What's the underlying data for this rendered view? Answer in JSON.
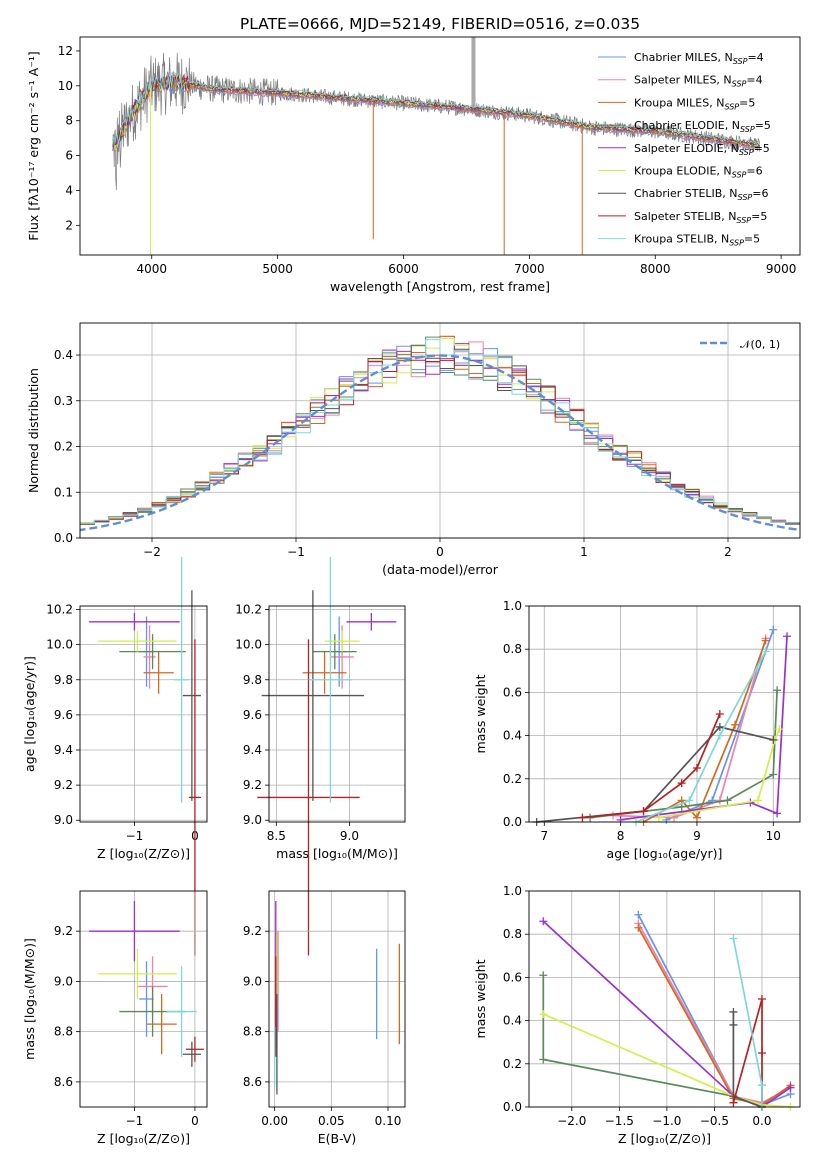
{
  "colors": {
    "Chabrier MILES": "#6495ed",
    "Salpeter MILES": "#ee82aa",
    "Kroupa MILES": "#d2691e",
    "Chabrier ELODIE": "#5a8a5a",
    "Salpeter ELODIE": "#9932cc",
    "Kroupa ELODIE": "#d4ee4a",
    "Chabrier STELIB": "#555555",
    "Salpeter STELIB": "#b22222",
    "Kroupa STELIB": "#7fd8d8"
  },
  "chart_data": [
    {
      "type": "line",
      "title": "PLATE=0666, MJD=52149, FIBERID=0516, z=0.035",
      "xlabel": "wavelength [Angstrom, rest frame]",
      "ylabel": "Flux [fλ10⁻¹⁷ erg cm⁻² s⁻¹ A⁻¹]",
      "xlim": [
        3430,
        9150
      ],
      "ylim": [
        0.3,
        12.8
      ],
      "xticks": [
        "4000",
        "5000",
        "6000",
        "7000",
        "8000",
        "9000"
      ],
      "yticks": [
        "2",
        "4",
        "6",
        "8",
        "10",
        "12"
      ],
      "grid": false,
      "legend": "top-right",
      "spectrum_x": [
        3700,
        3850,
        4000,
        4200,
        4500,
        5000,
        5500,
        6000,
        6500,
        7000,
        7500,
        8000,
        8500,
        8800
      ],
      "spectrum_y": [
        6.5,
        8.5,
        10.0,
        10.2,
        9.8,
        9.6,
        9.3,
        9.0,
        8.7,
        8.3,
        7.6,
        7.4,
        6.9,
        6.6
      ],
      "series": [
        {
          "name": "Chabrier MILES, N_SSP=4",
          "label_main": "Chabrier MILES, N",
          "label_sub": "SSP",
          "label_end": "=4"
        },
        {
          "name": "Salpeter MILES, N_SSP=4",
          "label_main": "Salpeter MILES, N",
          "label_sub": "SSP",
          "label_end": "=4"
        },
        {
          "name": "Kroupa MILES, N_SSP=5",
          "label_main": "Kroupa MILES, N",
          "label_sub": "SSP",
          "label_end": "=5"
        },
        {
          "name": "Chabrier ELODIE, N_SSP=5",
          "label_main": "Chabrier ELODIE, N",
          "label_sub": "SSP",
          "label_end": "=5"
        },
        {
          "name": "Salpeter ELODIE, N_SSP=5",
          "label_main": "Salpeter ELODIE, N",
          "label_sub": "SSP",
          "label_end": "=5"
        },
        {
          "name": "Kroupa ELODIE, N_SSP=6",
          "label_main": "Kroupa ELODIE, N",
          "label_sub": "SSP",
          "label_end": "=6"
        },
        {
          "name": "Chabrier STELIB, N_SSP=6",
          "label_main": "Chabrier STELIB, N",
          "label_sub": "SSP",
          "label_end": "=6"
        },
        {
          "name": "Salpeter STELIB, N_SSP=5",
          "label_main": "Salpeter STELIB, N",
          "label_sub": "SSP",
          "label_end": "=5"
        },
        {
          "name": "Kroupa STELIB, N_SSP=5",
          "label_main": "Kroupa STELIB, N",
          "label_sub": "SSP",
          "label_end": "=5"
        }
      ]
    },
    {
      "type": "line",
      "xlabel": "(data-model)/error",
      "ylabel": "Normed distribution",
      "xlim": [
        -2.5,
        2.5
      ],
      "ylim": [
        0,
        0.47
      ],
      "xticks": [
        "−2",
        "−1",
        "0",
        "1",
        "2"
      ],
      "yticks": [
        "0.0",
        "0.1",
        "0.2",
        "0.3",
        "0.4"
      ],
      "grid": true,
      "legend": "top-right",
      "legend_label": "𝒩(0, 1)",
      "gaussian": {
        "mean": 0,
        "sigma": 1,
        "color": "#5b8fd6"
      },
      "bin_width": 0.1
    },
    {
      "type": "scatter",
      "xlabel": "Z [log₁₀(Z/Z⊙)]",
      "ylabel": "age  [log₁₀(age/yr)]",
      "xlim": [
        -1.9,
        0.2
      ],
      "ylim": [
        8.99,
        10.22
      ],
      "xticks": [
        "−1",
        "0"
      ],
      "yticks": [
        "9.0",
        "9.2",
        "9.4",
        "9.6",
        "9.8",
        "10.0",
        "10.2"
      ],
      "grid": true,
      "points": [
        {
          "c": "Chabrier MILES",
          "x": -0.8,
          "y": 9.96,
          "xerr": 0.12,
          "yerr": 0.2
        },
        {
          "c": "Salpeter MILES",
          "x": -0.75,
          "y": 9.93,
          "xerr": 0.1,
          "yerr": 0.18
        },
        {
          "c": "Kroupa MILES",
          "x": -0.6,
          "y": 9.84,
          "xerr": 0.25,
          "yerr": 0.12
        },
        {
          "c": "Chabrier ELODIE",
          "x": -0.7,
          "y": 9.96,
          "xerr": 0.55,
          "yerr": 0.1
        },
        {
          "c": "Salpeter ELODIE",
          "x": -1.0,
          "y": 10.13,
          "xerr": 0.75,
          "yerr": 0.05
        },
        {
          "c": "Kroupa ELODIE",
          "x": -0.95,
          "y": 10.02,
          "xerr": 0.65,
          "yerr": 0.06
        },
        {
          "c": "Chabrier STELIB",
          "x": -0.05,
          "y": 9.71,
          "xerr": 0.15,
          "yerr": 0.6
        },
        {
          "c": "Salpeter STELIB",
          "x": 0.0,
          "y": 9.13,
          "xerr": 0.1,
          "yerr": 0.9
        },
        {
          "c": "Kroupa STELIB",
          "x": -0.22,
          "y": 9.8,
          "xerr": 0.12,
          "yerr": 0.7
        }
      ]
    },
    {
      "type": "scatter",
      "xlabel": "mass [log₁₀(M/M⊙)]",
      "xlim": [
        8.45,
        9.38
      ],
      "ylim": [
        8.99,
        10.22
      ],
      "xticks": [
        "8.5",
        "9.0"
      ],
      "yticks": [
        "9.0",
        "9.2",
        "9.4",
        "9.6",
        "9.8",
        "10.0",
        "10.2"
      ],
      "grid": true,
      "points": [
        {
          "c": "Chabrier MILES",
          "x": 8.93,
          "y": 9.96,
          "xerr": 0.05,
          "yerr": 0.2
        },
        {
          "c": "Salpeter MILES",
          "x": 8.95,
          "y": 9.93,
          "xerr": 0.08,
          "yerr": 0.18
        },
        {
          "c": "Kroupa MILES",
          "x": 8.83,
          "y": 9.84,
          "xerr": 0.15,
          "yerr": 0.12
        },
        {
          "c": "Chabrier ELODIE",
          "x": 8.9,
          "y": 9.96,
          "xerr": 0.15,
          "yerr": 0.1
        },
        {
          "c": "Salpeter ELODIE",
          "x": 9.15,
          "y": 10.13,
          "xerr": 0.17,
          "yerr": 0.05
        },
        {
          "c": "Kroupa ELODIE",
          "x": 8.95,
          "y": 10.02,
          "xerr": 0.12,
          "yerr": 0.06
        },
        {
          "c": "Chabrier STELIB",
          "x": 8.75,
          "y": 9.71,
          "xerr": 0.35,
          "yerr": 0.6
        },
        {
          "c": "Salpeter STELIB",
          "x": 8.72,
          "y": 9.13,
          "xerr": 0.35,
          "yerr": 0.9
        },
        {
          "c": "Kroupa STELIB",
          "x": 8.87,
          "y": 9.8,
          "xerr": 0.15,
          "yerr": 0.7
        }
      ]
    },
    {
      "type": "line",
      "xlabel": "age  [log₁₀(age/yr)]",
      "ylabel": "mass weight",
      "xlim": [
        6.8,
        10.35
      ],
      "ylim": [
        0,
        1.0
      ],
      "xticks": [
        "7",
        "8",
        "9",
        "10"
      ],
      "yticks": [
        "0.0",
        "0.2",
        "0.4",
        "0.6",
        "0.8",
        "1.0"
      ],
      "grid": true,
      "series": [
        {
          "c": "Chabrier MILES",
          "x": [
            8.6,
            9.2,
            10.0
          ],
          "y": [
            0.01,
            0.1,
            0.89
          ]
        },
        {
          "c": "Salpeter MILES",
          "x": [
            7.9,
            8.7,
            9.3,
            9.9
          ],
          "y": [
            0.03,
            0.02,
            0.1,
            0.85
          ]
        },
        {
          "c": "Kroupa MILES",
          "x": [
            8.3,
            8.8,
            9.0,
            9.5,
            9.9
          ],
          "y": [
            0.0,
            0.1,
            0.02,
            0.45,
            0.84
          ]
        },
        {
          "c": "Chabrier ELODIE",
          "x": [
            7.6,
            8.8,
            9.4,
            10.0,
            10.05
          ],
          "y": [
            0.02,
            0.07,
            0.1,
            0.22,
            0.61
          ]
        },
        {
          "c": "Salpeter ELODIE",
          "x": [
            8.0,
            9.7,
            10.05,
            10.18
          ],
          "y": [
            0.01,
            0.09,
            0.04,
            0.86
          ]
        },
        {
          "c": "Kroupa ELODIE",
          "x": [
            8.5,
            9.8,
            10.02,
            10.08
          ],
          "y": [
            0.02,
            0.1,
            0.38,
            0.43
          ]
        },
        {
          "c": "Chabrier STELIB",
          "x": [
            6.9,
            8.3,
            9.3,
            10.0
          ],
          "y": [
            0.0,
            0.05,
            0.44,
            0.38
          ]
        },
        {
          "c": "Salpeter STELIB",
          "x": [
            7.5,
            8.3,
            8.8,
            9.0,
            9.3
          ],
          "y": [
            0.02,
            0.05,
            0.18,
            0.25,
            0.5
          ]
        },
        {
          "c": "Kroupa STELIB",
          "x": [
            8.2,
            8.9,
            9.3,
            9.9
          ],
          "y": [
            0.0,
            0.1,
            0.4,
            0.79
          ]
        }
      ]
    },
    {
      "type": "scatter",
      "xlabel": "Z [log₁₀(Z/Z⊙)]",
      "ylabel": "mass [log₁₀(M/M⊙)]",
      "xlim": [
        -1.9,
        0.2
      ],
      "ylim": [
        8.5,
        9.36
      ],
      "xticks": [
        "−1",
        "0"
      ],
      "yticks": [
        "8.6",
        "8.8",
        "9.0",
        "9.2"
      ],
      "grid": true,
      "points": [
        {
          "c": "Chabrier MILES",
          "x": -0.8,
          "y": 8.93,
          "xerr": 0.12,
          "yerr": 0.15
        },
        {
          "c": "Salpeter MILES",
          "x": -0.7,
          "y": 8.98,
          "xerr": 0.25,
          "yerr": 0.12
        },
        {
          "c": "Kroupa MILES",
          "x": -0.55,
          "y": 8.83,
          "xerr": 0.25,
          "yerr": 0.12
        },
        {
          "c": "Chabrier ELODIE",
          "x": -0.7,
          "y": 8.88,
          "xerr": 0.55,
          "yerr": 0.1
        },
        {
          "c": "Salpeter ELODIE",
          "x": -1.0,
          "y": 9.2,
          "xerr": 0.75,
          "yerr": 0.12
        },
        {
          "c": "Kroupa ELODIE",
          "x": -0.95,
          "y": 9.03,
          "xerr": 0.65,
          "yerr": 0.1
        },
        {
          "c": "Chabrier STELIB",
          "x": -0.05,
          "y": 8.71,
          "xerr": 0.15,
          "yerr": 0.05
        },
        {
          "c": "Salpeter STELIB",
          "x": 0.0,
          "y": 8.73,
          "xerr": 0.15,
          "yerr": 0.05
        },
        {
          "c": "Kroupa STELIB",
          "x": -0.22,
          "y": 8.88,
          "xerr": 0.25,
          "yerr": 0.18
        }
      ]
    },
    {
      "type": "scatter",
      "xlabel": "E(B-V)",
      "xlim": [
        -0.005,
        0.115
      ],
      "ylim": [
        8.5,
        9.36
      ],
      "xticks": [
        "0.00",
        "0.05",
        "0.10"
      ],
      "yticks": [
        "8.6",
        "8.8",
        "9.0",
        "9.2"
      ],
      "grid": true,
      "points": [
        {
          "c": "Chabrier MILES",
          "x": 0.09,
          "y": 8.95,
          "xerr": 0,
          "yerr": 0.18
        },
        {
          "c": "Kroupa MILES",
          "x": 0.11,
          "y": 8.95,
          "xerr": 0,
          "yerr": 0.2
        },
        {
          "c": "Salpeter ELODIE",
          "x": 0.001,
          "y": 9.15,
          "xerr": 0,
          "yerr": 0.17
        },
        {
          "c": "Kroupa ELODIE",
          "x": 0.002,
          "y": 9.03,
          "xerr": 0,
          "yerr": 0.17
        },
        {
          "c": "Chabrier ELODIE",
          "x": 0.001,
          "y": 8.88,
          "xerr": 0,
          "yerr": 0.15
        },
        {
          "c": "Salpeter STELIB",
          "x": 0.001,
          "y": 8.9,
          "xerr": 0,
          "yerr": 0.2
        },
        {
          "c": "Chabrier STELIB",
          "x": 0.002,
          "y": 8.75,
          "xerr": 0,
          "yerr": 0.2
        },
        {
          "c": "Kroupa STELIB",
          "x": 0.0,
          "y": 8.7,
          "xerr": 0,
          "yerr": 0.12
        },
        {
          "c": "Salpeter MILES",
          "x": 0.003,
          "y": 9.0,
          "xerr": 0,
          "yerr": 0.2
        }
      ]
    },
    {
      "type": "line",
      "xlabel": "Z [log₁₀(Z/Z⊙)]",
      "ylabel": "mass weight",
      "xlim": [
        -2.45,
        0.4
      ],
      "ylim": [
        0,
        1.0
      ],
      "xticks": [
        "−2.0",
        "−1.5",
        "−1.0",
        "−0.5",
        "0.0"
      ],
      "yticks": [
        "0.0",
        "0.2",
        "0.4",
        "0.6",
        "0.8",
        "1.0"
      ],
      "grid": true,
      "series": [
        {
          "c": "Chabrier MILES",
          "x": [
            -1.3,
            -0.3,
            0.0,
            0.3
          ],
          "y": [
            0.89,
            0.05,
            0.01,
            0.06
          ]
        },
        {
          "c": "Salpeter MILES",
          "x": [
            -1.3,
            -0.3,
            0.0,
            0.3
          ],
          "y": [
            0.85,
            0.05,
            0.02,
            0.09
          ]
        },
        {
          "c": "Kroupa MILES",
          "x": [
            -1.3,
            -0.3,
            0.0,
            0.3
          ],
          "y": [
            0.83,
            0.04,
            0.01,
            0.1
          ]
        },
        {
          "c": "Chabrier ELODIE",
          "x": [
            -2.3,
            -2.3,
            -0.3,
            0.0,
            0.0
          ],
          "y": [
            0.61,
            0.22,
            0.05,
            0.0,
            0.1
          ]
        },
        {
          "c": "Salpeter ELODIE",
          "x": [
            -2.3,
            -0.3,
            0.0,
            0.3
          ],
          "y": [
            0.86,
            0.05,
            0.0,
            0.09
          ]
        },
        {
          "c": "Kroupa ELODIE",
          "x": [
            -2.3,
            -0.3,
            0.0,
            0.3
          ],
          "y": [
            0.43,
            0.05,
            0.01,
            0.0
          ]
        },
        {
          "c": "Chabrier STELIB",
          "x": [
            -0.3,
            -0.3,
            -0.3,
            0.0
          ],
          "y": [
            0.44,
            0.38,
            0.05,
            0.0
          ]
        },
        {
          "c": "Salpeter STELIB",
          "x": [
            -0.3,
            0.0,
            0.0,
            0.0
          ],
          "y": [
            0.02,
            0.5,
            0.25,
            0.0
          ]
        },
        {
          "c": "Kroupa STELIB",
          "x": [
            -0.3,
            0.0,
            0.0
          ],
          "y": [
            0.78,
            0.1,
            0.0
          ]
        }
      ]
    }
  ]
}
